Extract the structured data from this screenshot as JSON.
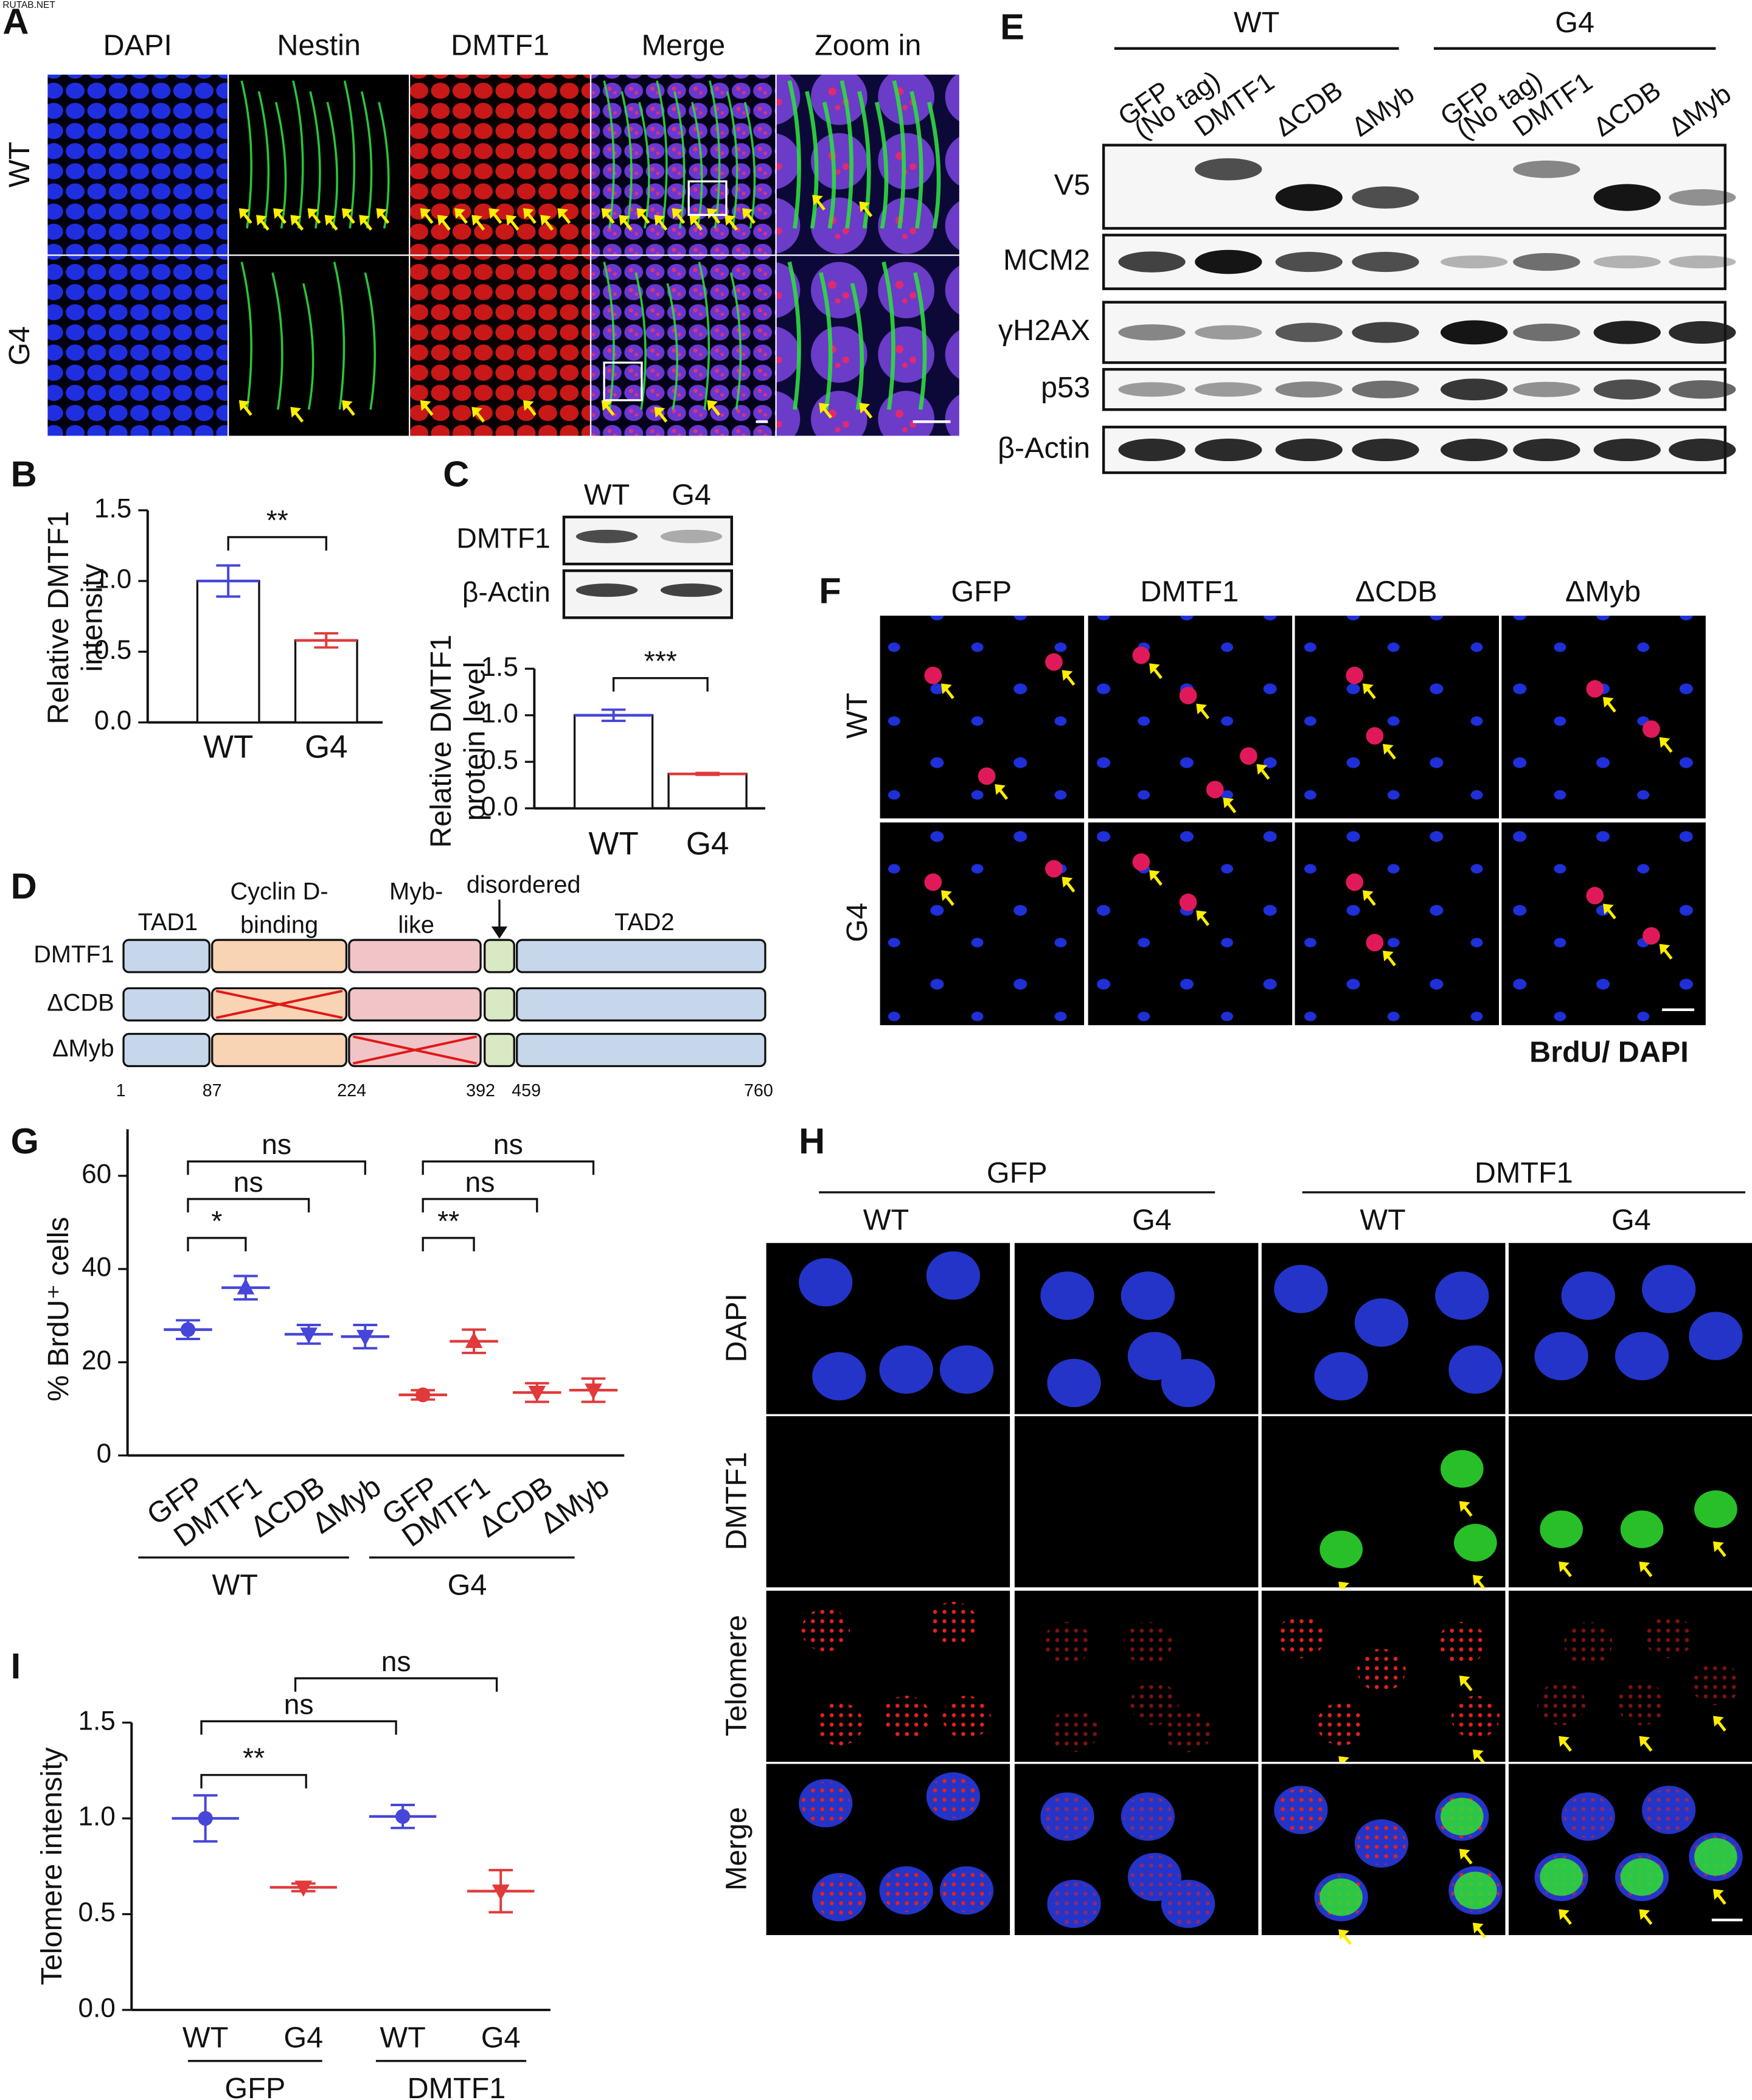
{
  "watermark": "RUTAB.NET",
  "panel_a": {
    "letter": "A",
    "columns": [
      "DAPI",
      "Nestin",
      "DMTF1",
      "Merge",
      "Zoom in"
    ],
    "rows": [
      "WT",
      "G4"
    ]
  },
  "panel_c": {
    "groups": [
      "WT",
      "G4"
    ],
    "rows": [
      "DMTF1",
      "β-Actin"
    ]
  },
  "panel_d": {
    "letter": "D",
    "domains": [
      [
        "TAD1"
      ],
      [
        "Cyclin D-",
        "binding"
      ],
      [
        "Myb-",
        "like"
      ],
      [
        "disordered"
      ],
      [
        "TAD2"
      ]
    ],
    "constructs": [
      "DMTF1",
      "ΔCDB",
      "ΔMyb"
    ],
    "positions": [
      1,
      87,
      224,
      392,
      459,
      760
    ]
  },
  "panel_e": {
    "letter": "E",
    "groups": [
      "WT",
      "G4"
    ],
    "lanes": [
      [
        "GFP",
        "(No tag)"
      ],
      [
        "DMTF1"
      ],
      [
        "ΔCDB"
      ],
      [
        "ΔMyb"
      ]
    ],
    "rows": [
      "V5",
      "MCM2",
      "γH2AX",
      "p53",
      "β-Actin"
    ]
  },
  "panel_f": {
    "letter": "F",
    "columns": [
      "GFP",
      "DMTF1",
      "ΔCDB",
      "ΔMyb"
    ],
    "rows": [
      "WT",
      "G4"
    ],
    "stain": [
      "BrdU",
      "/ DAPI"
    ]
  },
  "panel_h": {
    "letter": "H",
    "groups": [
      "GFP",
      "DMTF1"
    ],
    "columns": [
      "WT",
      "G4"
    ],
    "rows": [
      "DAPI",
      "DMTF1",
      "Telomere",
      "Merge"
    ]
  },
  "chart_data": [
    {
      "type": "bar",
      "panel": "B",
      "ylabel": [
        "Relative DMTF1",
        "intensity"
      ],
      "categories": [
        "WT",
        "G4"
      ],
      "values": [
        1.0,
        0.58
      ],
      "errors": [
        0.11,
        0.05
      ],
      "colors": [
        "#4646d8",
        "#e03a3a"
      ],
      "ylim": [
        0,
        1.5
      ],
      "yticks": [
        {
          "value": 0,
          "label": "0.0"
        },
        {
          "value": 0.5,
          "label": "0.5"
        },
        {
          "value": 1,
          "label": "1.0"
        },
        {
          "value": 1.5,
          "label": "1.5"
        }
      ],
      "annotations": [
        "**"
      ]
    },
    {
      "type": "bar",
      "panel": "C",
      "ylabel": [
        "Relative DMTF1",
        "protein level"
      ],
      "categories": [
        "WT",
        "G4"
      ],
      "values": [
        1.0,
        0.37
      ],
      "errors": [
        0.06,
        0.01
      ],
      "colors": [
        "#4646d8",
        "#e03a3a"
      ],
      "ylim": [
        0,
        1.5
      ],
      "yticks": [
        {
          "value": 0,
          "label": "0.0"
        },
        {
          "value": 0.5,
          "label": "0.5"
        },
        {
          "value": 1,
          "label": "1.0"
        },
        {
          "value": 1.5,
          "label": "1.5"
        }
      ],
      "annotations": [
        "***"
      ]
    },
    {
      "type": "dot",
      "panel": "G",
      "ylabel": "% BrdU⁺ cells",
      "categories": [
        "GFP",
        "DMTF1",
        "ΔCDB",
        "ΔMyb"
      ],
      "markers": [
        "circle",
        "triangle",
        "triangle-down",
        "triangle-down"
      ],
      "series": [
        {
          "name": "WT",
          "color": "#4646d8",
          "values": [
            27,
            36,
            26,
            25.5
          ],
          "errors": [
            2,
            2.5,
            2,
            2.5
          ]
        },
        {
          "name": "G4",
          "color": "#e03a3a",
          "values": [
            13,
            24.5,
            13.5,
            14
          ],
          "errors": [
            1,
            2.5,
            2,
            2.5
          ]
        }
      ],
      "ylim": [
        0,
        70
      ],
      "yticks": [
        0,
        20,
        40,
        60
      ],
      "annotations": [
        "ns",
        "ns",
        "*",
        "ns",
        "ns",
        "**"
      ]
    },
    {
      "type": "dot",
      "panel": "I",
      "ylabel": "Telomere intensity",
      "categories": [
        "WT",
        "G4"
      ],
      "colors": [
        "#4646d8",
        "#e03a3a"
      ],
      "markers": [
        "circle",
        "triangle-down"
      ],
      "series": [
        {
          "name": "GFP",
          "values": [
            1.0,
            0.64
          ],
          "errors": [
            0.12,
            0.02
          ]
        },
        {
          "name": "DMTF1",
          "values": [
            1.01,
            0.62
          ],
          "errors": [
            0.06,
            0.11
          ]
        }
      ],
      "ylim": [
        0,
        1.5
      ],
      "yticks": [
        {
          "value": 0,
          "label": "0.0"
        },
        {
          "value": 0.5,
          "label": "0.5"
        },
        {
          "value": 1,
          "label": "1.0"
        },
        {
          "value": 1.5,
          "label": "1.5"
        }
      ],
      "annotations": [
        "ns",
        "ns",
        "**"
      ]
    }
  ]
}
